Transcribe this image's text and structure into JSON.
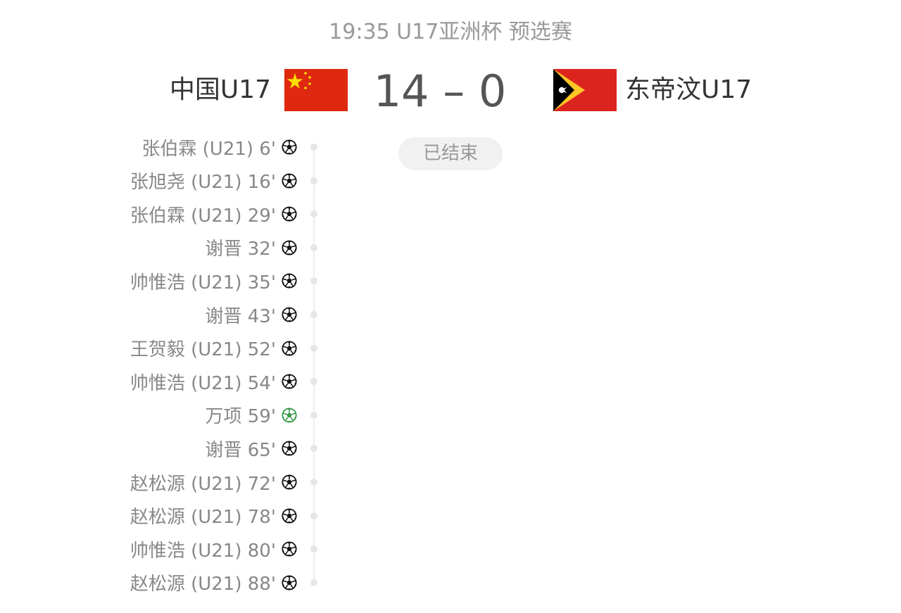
{
  "header": {
    "title": "19:35 U17亚洲杯 预选赛"
  },
  "match": {
    "home": {
      "name": "中国U17",
      "flag": "china-flag"
    },
    "away": {
      "name": "东帝汶U17",
      "flag": "timor-leste-flag"
    },
    "score": "14 – 0",
    "status": "已结束"
  },
  "colors": {
    "goal_icon": "#111111",
    "special_goal_icon": "#3a9a4a"
  },
  "goals": [
    {
      "text": "张伯霖 (U21) 6'",
      "icon": "soccer-ball-icon"
    },
    {
      "text": "张旭尧 (U21) 16'",
      "icon": "soccer-ball-icon"
    },
    {
      "text": "张伯霖 (U21) 29'",
      "icon": "soccer-ball-icon"
    },
    {
      "text": "谢晋 32'",
      "icon": "soccer-ball-icon"
    },
    {
      "text": "帅惟浩 (U21) 35'",
      "icon": "soccer-ball-icon"
    },
    {
      "text": "谢晋 43'",
      "icon": "soccer-ball-icon"
    },
    {
      "text": "王贺毅 (U21) 52'",
      "icon": "soccer-ball-icon"
    },
    {
      "text": "帅惟浩 (U21) 54'",
      "icon": "soccer-ball-icon"
    },
    {
      "text": "万项 59'",
      "icon": "soccer-ball-green-icon"
    },
    {
      "text": "谢晋 65'",
      "icon": "soccer-ball-icon"
    },
    {
      "text": "赵松源 (U21) 72'",
      "icon": "soccer-ball-icon"
    },
    {
      "text": "赵松源 (U21) 78'",
      "icon": "soccer-ball-icon"
    },
    {
      "text": "帅惟浩 (U21) 80'",
      "icon": "soccer-ball-icon"
    },
    {
      "text": "赵松源 (U21) 88'",
      "icon": "soccer-ball-icon"
    }
  ]
}
